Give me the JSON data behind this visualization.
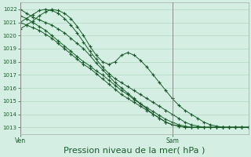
{
  "bg_color": "#d4eee4",
  "grid_color": "#b0d8c0",
  "line_color": "#1a5c2a",
  "xlabel": "Pression niveau de la mer( hPa )",
  "xlabel_fontsize": 8,
  "yticks": [
    1013,
    1014,
    1015,
    1016,
    1017,
    1018,
    1019,
    1020,
    1021,
    1022
  ],
  "ylim": [
    1012.5,
    1022.5
  ],
  "xlim": [
    0,
    36
  ],
  "ven_x": 0,
  "sam_x": 24,
  "series": [
    [
      1021.5,
      1021.3,
      1021.0,
      1020.7,
      1020.4,
      1020.0,
      1019.6,
      1019.2,
      1018.8,
      1018.4,
      1018.0,
      1017.7,
      1017.3,
      1017.0,
      1016.6,
      1016.2,
      1015.8,
      1015.5,
      1015.1,
      1014.8,
      1014.5,
      1014.2,
      1013.9,
      1013.6,
      1013.4,
      1013.2,
      1013.1,
      1013.0,
      1013.0,
      1013.0,
      1013.0,
      1013.0,
      1013.0,
      1013.0,
      1013.0,
      1013.0,
      1013.0
    ],
    [
      1021.0,
      1020.8,
      1020.6,
      1020.4,
      1020.1,
      1019.8,
      1019.4,
      1019.0,
      1018.6,
      1018.2,
      1017.8,
      1017.5,
      1017.1,
      1016.7,
      1016.3,
      1015.9,
      1015.5,
      1015.2,
      1014.9,
      1014.6,
      1014.3,
      1014.0,
      1013.7,
      1013.4,
      1013.2,
      1013.1,
      1013.0,
      1013.0,
      1013.0,
      1013.0,
      1013.0,
      1013.0,
      1013.0,
      1013.0,
      1013.0,
      1013.0,
      1013.0
    ],
    [
      1022.0,
      1021.7,
      1021.4,
      1021.2,
      1021.0,
      1020.8,
      1020.5,
      1020.2,
      1019.8,
      1019.4,
      1019.0,
      1018.5,
      1017.9,
      1017.4,
      1016.9,
      1016.4,
      1016.0,
      1015.6,
      1015.2,
      1014.8,
      1014.4,
      1014.0,
      1013.7,
      1013.4,
      1013.2,
      1013.1,
      1013.0,
      1013.0,
      1013.0,
      1013.0,
      1013.0,
      1013.0,
      1013.0,
      1013.0,
      1013.0,
      1013.0,
      1013.0
    ],
    [
      1021.0,
      1021.3,
      1021.6,
      1021.9,
      1022.0,
      1021.9,
      1021.7,
      1021.3,
      1020.8,
      1020.2,
      1019.5,
      1018.8,
      1018.2,
      1017.6,
      1017.1,
      1016.7,
      1016.4,
      1016.1,
      1015.8,
      1015.5,
      1015.2,
      1014.9,
      1014.6,
      1014.3,
      1014.0,
      1013.7,
      1013.4,
      1013.2,
      1013.1,
      1013.0,
      1013.0,
      1013.0,
      1013.0,
      1013.0,
      1013.0,
      1013.0,
      1013.0
    ],
    [
      1020.5,
      1020.8,
      1021.1,
      1021.5,
      1021.8,
      1022.0,
      1021.9,
      1021.7,
      1021.3,
      1020.7,
      1020.0,
      1019.2,
      1018.5,
      1018.0,
      1017.8,
      1018.0,
      1018.5,
      1018.7,
      1018.5,
      1018.1,
      1017.6,
      1017.0,
      1016.4,
      1015.8,
      1015.2,
      1014.7,
      1014.3,
      1014.0,
      1013.7,
      1013.4,
      1013.2,
      1013.1,
      1013.0,
      1013.0,
      1013.0,
      1013.0,
      1013.0
    ]
  ]
}
